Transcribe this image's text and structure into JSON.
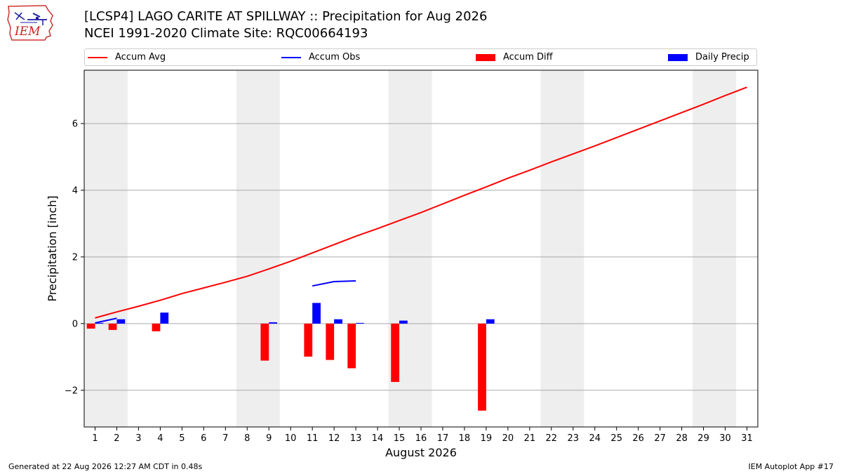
{
  "header": {
    "title_line1": "[LCSP4] LAGO CARITE AT SPILLWAY :: Precipitation for Aug 2026",
    "title_line2": "NCEI 1991-2020 Climate Site: RQC00664193"
  },
  "logo": {
    "text": "IEM"
  },
  "footer": {
    "left": "Generated at 22 Aug 2026 12:27 AM CDT in 0.48s",
    "right": "IEM Autoplot App #17"
  },
  "colors": {
    "accum_avg": "#ff0000",
    "accum_obs": "#0000ff",
    "accum_diff": "#ff0000",
    "daily_precip": "#0000ff",
    "weekend_shade": "#eeeeee",
    "grid": "#aaaaaa"
  },
  "chart_data": {
    "type": "bar",
    "xlabel": "August 2026",
    "ylabel": "Precipitation [inch]",
    "x": [
      1,
      2,
      3,
      4,
      5,
      6,
      7,
      8,
      9,
      10,
      11,
      12,
      13,
      14,
      15,
      16,
      17,
      18,
      19,
      20,
      21,
      22,
      23,
      24,
      25,
      26,
      27,
      28,
      29,
      30,
      31
    ],
    "xlim": [
      0.5,
      31.5
    ],
    "ylim": [
      -3.1,
      7.6
    ],
    "yticks": [
      -2,
      0,
      2,
      4,
      6
    ],
    "ytick_labels": [
      "−2",
      "0",
      "2",
      "4",
      "6"
    ],
    "grid": "horizontal",
    "legend_position": "top",
    "shaded_x_ranges": [
      [
        0.5,
        2.5
      ],
      [
        7.5,
        9.5
      ],
      [
        14.5,
        16.5
      ],
      [
        21.5,
        23.5
      ],
      [
        28.5,
        30.5
      ]
    ],
    "series": [
      {
        "name": "Accum Avg",
        "kind": "line",
        "x": [
          1,
          2,
          3,
          4,
          5,
          6,
          7,
          8,
          9,
          10,
          11,
          12,
          13,
          14,
          15,
          16,
          17,
          18,
          19,
          20,
          21,
          22,
          23,
          24,
          25,
          26,
          27,
          28,
          29,
          30,
          31
        ],
        "values": [
          0.17,
          0.35,
          0.52,
          0.7,
          0.9,
          1.07,
          1.24,
          1.42,
          1.64,
          1.87,
          2.12,
          2.37,
          2.62,
          2.85,
          3.09,
          3.33,
          3.59,
          3.85,
          4.1,
          4.36,
          4.6,
          4.85,
          5.09,
          5.33,
          5.58,
          5.83,
          6.08,
          6.33,
          6.58,
          6.84,
          7.09
        ]
      },
      {
        "name": "Accum Obs",
        "kind": "line",
        "x": [
          1,
          2,
          3,
          4,
          5,
          6,
          7,
          8,
          9,
          10,
          11,
          12,
          13
        ],
        "values": [
          0.02,
          0.16,
          null,
          null,
          null,
          null,
          null,
          null,
          null,
          null,
          1.13,
          1.26,
          1.28
        ]
      },
      {
        "name": "Accum Diff",
        "kind": "bar",
        "x": [
          1,
          2,
          4,
          9,
          11,
          12,
          13,
          15,
          19
        ],
        "values": [
          -0.15,
          -0.19,
          -0.23,
          -1.11,
          -0.99,
          -1.09,
          -1.34,
          -1.75,
          -2.61
        ]
      },
      {
        "name": "Daily Precip",
        "kind": "bar",
        "x": [
          1,
          2,
          4,
          9,
          11,
          12,
          13,
          15,
          19
        ],
        "values": [
          0.02,
          0.13,
          0.33,
          0.04,
          0.62,
          0.13,
          0.02,
          0.09,
          0.13
        ]
      }
    ]
  }
}
